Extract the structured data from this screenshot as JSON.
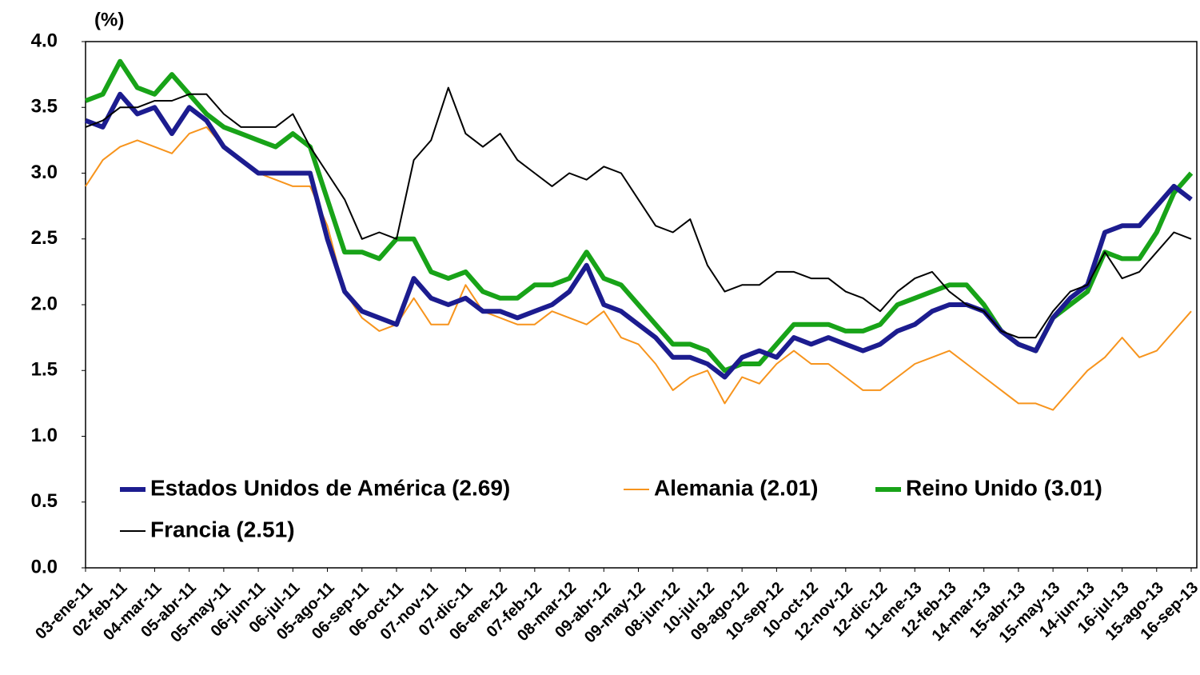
{
  "chart_data": {
    "type": "line",
    "y_label": "(%)",
    "categories": [
      "03-ene-11",
      null,
      "02-feb-11",
      null,
      "04-mar-11",
      null,
      "05-abr-11",
      null,
      "05-may-11",
      null,
      "06-jun-11",
      null,
      "06-jul-11",
      null,
      "05-ago-11",
      null,
      "06-sep-11",
      null,
      "06-oct-11",
      null,
      "07-nov-11",
      null,
      "07-dic-11",
      null,
      "06-ene-12",
      null,
      "07-feb-12",
      null,
      "08-mar-12",
      null,
      "09-abr-12",
      null,
      "09-may-12",
      null,
      "08-jun-12",
      null,
      "10-jul-12",
      null,
      "09-ago-12",
      null,
      "10-sep-12",
      null,
      "10-oct-12",
      null,
      "12-nov-12",
      null,
      "12-dic-12",
      null,
      "11-ene-13",
      null,
      "12-feb-13",
      null,
      "14-mar-13",
      null,
      "15-abr-13",
      null,
      "15-may-13",
      null,
      "14-jun-13",
      null,
      "16-jul-13",
      null,
      "15-ago-13",
      null,
      "16-sep-13"
    ],
    "ylim": [
      0,
      4
    ],
    "yticks": [
      {
        "value": 0,
        "label": "0.0"
      },
      {
        "value": 0.5,
        "label": "0.5"
      },
      {
        "value": 1,
        "label": "1.0"
      },
      {
        "value": 1.5,
        "label": "1.5"
      },
      {
        "value": 2,
        "label": "2.0"
      },
      {
        "value": 2.5,
        "label": "2.5"
      },
      {
        "value": 3,
        "label": "3.0"
      },
      {
        "value": 3.5,
        "label": "3.5"
      },
      {
        "value": 4,
        "label": "4.0"
      }
    ],
    "grid": false,
    "series": [
      {
        "name": "Estados Unidos de América (2.69)",
        "color": "#1c1c8f",
        "width": 6,
        "values": [
          3.4,
          3.35,
          3.6,
          3.45,
          3.5,
          3.3,
          3.5,
          3.4,
          3.2,
          3.1,
          3.0,
          3.0,
          3.0,
          3.0,
          2.5,
          2.1,
          1.95,
          1.9,
          1.85,
          2.2,
          2.05,
          2.0,
          2.05,
          1.95,
          1.95,
          1.9,
          1.95,
          2.0,
          2.1,
          2.3,
          2.0,
          1.95,
          1.85,
          1.75,
          1.6,
          1.6,
          1.55,
          1.45,
          1.6,
          1.65,
          1.6,
          1.75,
          1.7,
          1.75,
          1.7,
          1.65,
          1.7,
          1.8,
          1.85,
          1.95,
          2.0,
          2.0,
          1.95,
          1.8,
          1.7,
          1.65,
          1.9,
          2.05,
          2.15,
          2.55,
          2.6,
          2.6,
          2.75,
          2.9,
          2.8
        ]
      },
      {
        "name": "Alemania (2.01)",
        "color": "#f7941d",
        "width": 2,
        "values": [
          2.9,
          3.1,
          3.2,
          3.25,
          3.2,
          3.15,
          3.3,
          3.35,
          3.2,
          3.1,
          3.0,
          2.95,
          2.9,
          2.9,
          2.6,
          2.1,
          1.9,
          1.8,
          1.85,
          2.05,
          1.85,
          1.85,
          2.15,
          1.95,
          1.9,
          1.85,
          1.85,
          1.95,
          1.9,
          1.85,
          1.95,
          1.75,
          1.7,
          1.55,
          1.35,
          1.45,
          1.5,
          1.25,
          1.45,
          1.4,
          1.55,
          1.65,
          1.55,
          1.55,
          1.45,
          1.35,
          1.35,
          1.45,
          1.55,
          1.6,
          1.65,
          1.55,
          1.45,
          1.35,
          1.25,
          1.25,
          1.2,
          1.35,
          1.5,
          1.6,
          1.75,
          1.6,
          1.65,
          1.8,
          1.95
        ]
      },
      {
        "name": "Reino Unido (3.01)",
        "color": "#18a318",
        "width": 6,
        "values": [
          3.55,
          3.6,
          3.85,
          3.65,
          3.6,
          3.75,
          3.6,
          3.45,
          3.35,
          3.3,
          3.25,
          3.2,
          3.3,
          3.2,
          2.8,
          2.4,
          2.4,
          2.35,
          2.5,
          2.5,
          2.25,
          2.2,
          2.25,
          2.1,
          2.05,
          2.05,
          2.15,
          2.15,
          2.2,
          2.4,
          2.2,
          2.15,
          2.0,
          1.85,
          1.7,
          1.7,
          1.65,
          1.5,
          1.55,
          1.55,
          1.7,
          1.85,
          1.85,
          1.85,
          1.8,
          1.8,
          1.85,
          2.0,
          2.05,
          2.1,
          2.15,
          2.15,
          2.0,
          1.8,
          1.7,
          1.65,
          1.9,
          2.0,
          2.1,
          2.4,
          2.35,
          2.35,
          2.55,
          2.85,
          3.0
        ]
      },
      {
        "name": "Francia (2.51)",
        "color": "#000000",
        "width": 2,
        "values": [
          3.35,
          3.4,
          3.5,
          3.5,
          3.55,
          3.55,
          3.6,
          3.6,
          3.45,
          3.35,
          3.35,
          3.35,
          3.45,
          3.2,
          3.0,
          2.8,
          2.5,
          2.55,
          2.5,
          3.1,
          3.25,
          3.65,
          3.3,
          3.2,
          3.3,
          3.1,
          3.0,
          2.9,
          3.0,
          2.95,
          3.05,
          3.0,
          2.8,
          2.6,
          2.55,
          2.65,
          2.3,
          2.1,
          2.15,
          2.15,
          2.25,
          2.25,
          2.2,
          2.2,
          2.1,
          2.05,
          1.95,
          2.1,
          2.2,
          2.25,
          2.1,
          2.0,
          1.95,
          1.8,
          1.75,
          1.75,
          1.95,
          2.1,
          2.15,
          2.4,
          2.2,
          2.25,
          2.4,
          2.55,
          2.5
        ]
      }
    ]
  }
}
